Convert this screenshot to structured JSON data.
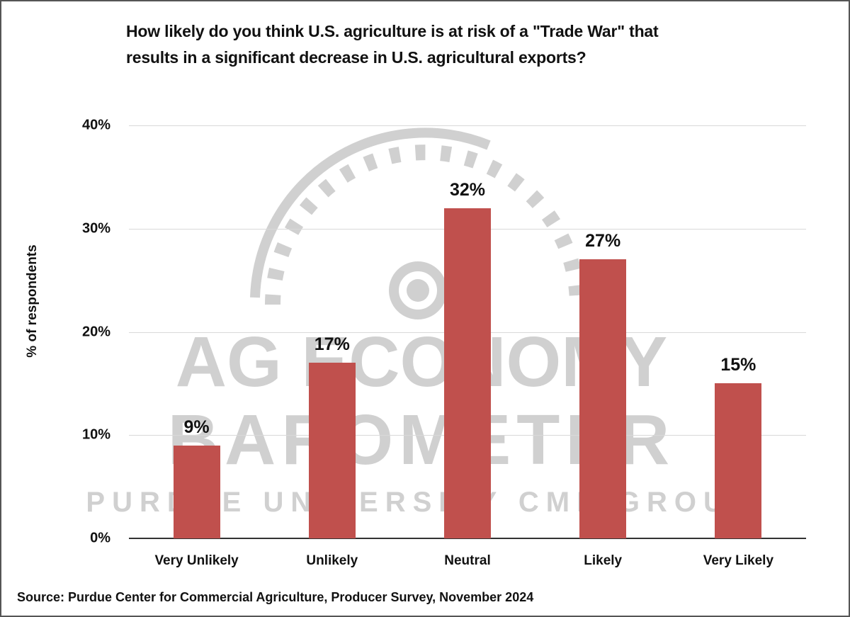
{
  "chart_data": {
    "type": "bar",
    "title": "How likely do you think U.S. agriculture is at risk of a \"Trade War\" that results in a significant decrease in U.S. agricultural exports?",
    "title_lines": [
      "How likely do you think U.S. agriculture is at risk of a \"Trade War\" that",
      "results in a significant decrease in U.S. agricultural exports?"
    ],
    "xlabel": "",
    "ylabel": "% of respondents",
    "categories": [
      "Very Unlikely",
      "Unlikely",
      "Neutral",
      "Likely",
      "Very Likely"
    ],
    "values": [
      9,
      17,
      32,
      27,
      15
    ],
    "value_labels": [
      "9%",
      "17%",
      "32%",
      "27%",
      "15%"
    ],
    "ylim": [
      0,
      40
    ],
    "yticks": [
      0,
      10,
      20,
      30,
      40
    ],
    "ytick_labels": [
      "0%",
      "10%",
      "20%",
      "30%",
      "40%"
    ],
    "grid": true,
    "legend": null,
    "bar_color": "#c0504d",
    "source": "Source: Purdue Center for Commercial Agriculture, Producer Survey, November 2024",
    "watermark": {
      "line1": "AG ECONOMY",
      "line2": "BAROMETER",
      "line3": "PURDUE UNIVERSITY   CME GROUP"
    }
  }
}
